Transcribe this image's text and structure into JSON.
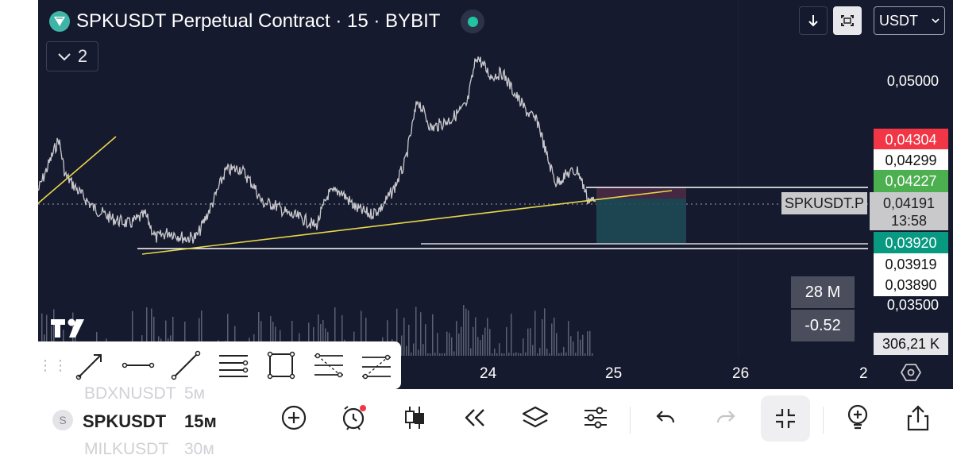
{
  "header": {
    "title": "SPKUSDT Perpetual Contract · 15 · BYBIT",
    "collapse_count": "2",
    "currency": "USDT"
  },
  "price_axis": {
    "labels": [
      "0,05000",
      "0,04299",
      "0,03919",
      "0,03890",
      "0,03500"
    ],
    "tags": {
      "red": "0,04304",
      "green": "0,04227",
      "teal": "0,03920",
      "volume": "306,21 K"
    },
    "symbol_label": "SPKUSDT.P",
    "current_price": "0,04191",
    "countdown": "13:58"
  },
  "indicators": {
    "volume": "28 M",
    "change": "-0.52"
  },
  "time_axis": [
    "24",
    "25",
    "26",
    "2"
  ],
  "drawing_tools": [
    "arrow-line",
    "horizontal-line",
    "trend-line",
    "parallel-lines",
    "rectangle",
    "fib-channel",
    "pitchfork"
  ],
  "bottom": {
    "symbols": [
      "BDXNUSDT",
      "SPKUSDT",
      "MILKUSDT"
    ],
    "intervals": [
      "5м",
      "15м",
      "30м"
    ]
  },
  "colors": {
    "background": "#161a2e",
    "red_tag": "#f23645",
    "green_tag": "#4caf50",
    "teal_tag": "#089981",
    "trendline": "#e8d74a"
  }
}
